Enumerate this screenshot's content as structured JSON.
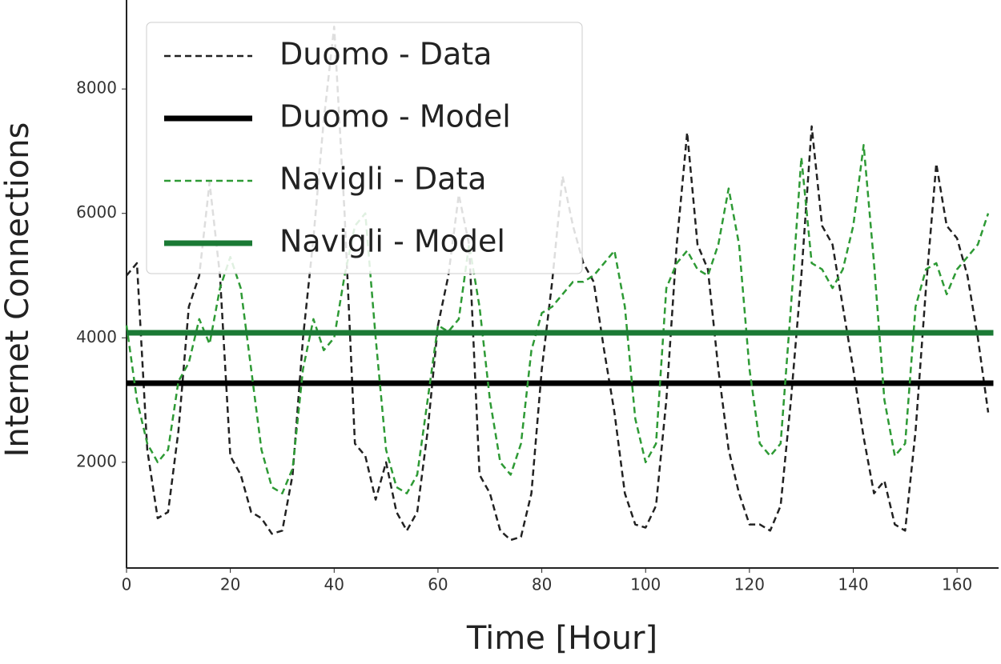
{
  "chart_data": {
    "type": "line",
    "xlabel": "Time [Hour]",
    "ylabel": "Internet Connections",
    "xlim": [
      0,
      168
    ],
    "ylim": [
      300,
      9430
    ],
    "xticks": [
      0,
      20,
      40,
      60,
      80,
      100,
      120,
      140,
      160
    ],
    "yticks": [
      2000,
      4000,
      6000,
      8000
    ],
    "grid": false,
    "legend": "upper left",
    "x": [
      0,
      2,
      4,
      6,
      8,
      10,
      12,
      14,
      16,
      18,
      20,
      22,
      24,
      26,
      28,
      30,
      32,
      34,
      36,
      38,
      40,
      42,
      44,
      46,
      48,
      50,
      52,
      54,
      56,
      58,
      60,
      62,
      64,
      66,
      68,
      70,
      72,
      74,
      76,
      78,
      80,
      82,
      84,
      86,
      88,
      90,
      92,
      94,
      96,
      98,
      100,
      102,
      104,
      106,
      108,
      110,
      112,
      114,
      116,
      118,
      120,
      122,
      124,
      126,
      128,
      130,
      132,
      134,
      136,
      138,
      140,
      142,
      144,
      146,
      148,
      150,
      152,
      154,
      156,
      158,
      160,
      162,
      164,
      166
    ],
    "series": [
      {
        "name": "Duomo - Data",
        "color": "#222222",
        "style": "dashed",
        "values": [
          5000,
          5200,
          2200,
          1100,
          1200,
          2500,
          4500,
          5000,
          6500,
          5000,
          2100,
          1800,
          1200,
          1100,
          850,
          900,
          1800,
          4000,
          5600,
          7500,
          9000,
          6000,
          2300,
          2100,
          1400,
          2000,
          1200,
          900,
          1200,
          2500,
          4200,
          5000,
          6300,
          5500,
          1800,
          1500,
          900,
          750,
          800,
          1500,
          3500,
          4900,
          6600,
          5800,
          5200,
          4900,
          3800,
          2800,
          1500,
          1000,
          950,
          1300,
          3000,
          5500,
          7300,
          5500,
          5100,
          3500,
          2200,
          1500,
          1000,
          1000,
          900,
          1300,
          3000,
          5000,
          7400,
          5800,
          5500,
          4500,
          3500,
          2400,
          1500,
          1700,
          1000,
          900,
          2500,
          4800,
          6800,
          5800,
          5600,
          5000,
          4000,
          2800
        ]
      },
      {
        "name": "Duomo - Model",
        "color": "#000000",
        "style": "solid",
        "x": [
          0,
          167
        ],
        "values": [
          3270,
          3270
        ]
      },
      {
        "name": "Navigli - Data",
        "color": "#2e9a35",
        "style": "dashed",
        "values": [
          4200,
          3000,
          2300,
          2000,
          2200,
          3300,
          3600,
          4300,
          3900,
          4800,
          5300,
          4800,
          3500,
          2200,
          1600,
          1500,
          1900,
          3500,
          4300,
          3800,
          4000,
          5000,
          5800,
          6000,
          4000,
          2200,
          1600,
          1500,
          1800,
          3000,
          4200,
          4100,
          4300,
          5500,
          4500,
          3000,
          2000,
          1800,
          2300,
          3800,
          4400,
          4500,
          4700,
          4900,
          4900,
          5000,
          5200,
          5400,
          4500,
          2700,
          2000,
          2300,
          4800,
          5200,
          5400,
          5100,
          5000,
          5500,
          6400,
          5500,
          3500,
          2300,
          2100,
          2300,
          4500,
          6900,
          5200,
          5100,
          4800,
          5100,
          5800,
          7100,
          5200,
          3000,
          2100,
          2300,
          4500,
          5100,
          5200,
          4700,
          5100,
          5300,
          5500,
          6000
        ]
      },
      {
        "name": "Navigli - Model",
        "color": "#1b7a35",
        "style": "solid",
        "x": [
          0,
          167
        ],
        "values": [
          4080,
          4080
        ]
      }
    ]
  }
}
